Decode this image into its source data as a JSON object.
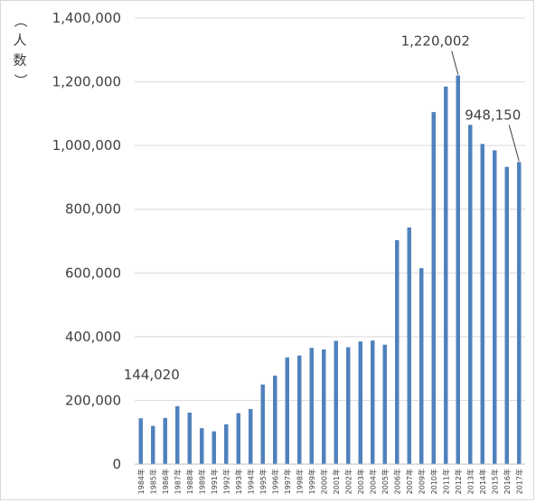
{
  "chart_data": {
    "type": "bar",
    "title": "",
    "xlabel": "",
    "ylabel": "（人数）",
    "ylim": [
      0,
      1400000
    ],
    "yticks": [
      0,
      200000,
      400000,
      600000,
      800000,
      1000000,
      1200000,
      1400000
    ],
    "ytick_labels": [
      "0",
      "200,000",
      "400,000",
      "600,000",
      "800,000",
      "1,000,000",
      "1,200,000",
      "1,400,000"
    ],
    "grid": true,
    "legend": "none",
    "bar_color": "#4f81bd",
    "categories": [
      "1984年",
      "1985年",
      "1986年",
      "1987年",
      "1988年",
      "1989年",
      "1991年",
      "1992年",
      "1993年",
      "1994年",
      "1995年",
      "1996年",
      "1997年",
      "1998年",
      "1999年",
      "2000年",
      "2001年",
      "2002年",
      "2003年",
      "2004年",
      "2005年",
      "2006年",
      "2007年",
      "2009年",
      "2010年",
      "2011年",
      "2012年",
      "2013年",
      "2014年",
      "2015年",
      "2016年",
      "2017年"
    ],
    "values": [
      144020,
      120000,
      145000,
      182000,
      162000,
      113000,
      103000,
      125000,
      160000,
      173000,
      250000,
      278000,
      335000,
      341000,
      365000,
      360000,
      387000,
      367000,
      385000,
      388000,
      375000,
      703000,
      743000,
      615000,
      1105000,
      1185000,
      1220002,
      1065000,
      1005000,
      985000,
      933000,
      948150
    ],
    "data_labels": [
      {
        "category": "1984年",
        "text": "144,020"
      },
      {
        "category": "2012年",
        "text": "1,220,002"
      },
      {
        "category": "2017年",
        "text": "948,150"
      }
    ]
  }
}
